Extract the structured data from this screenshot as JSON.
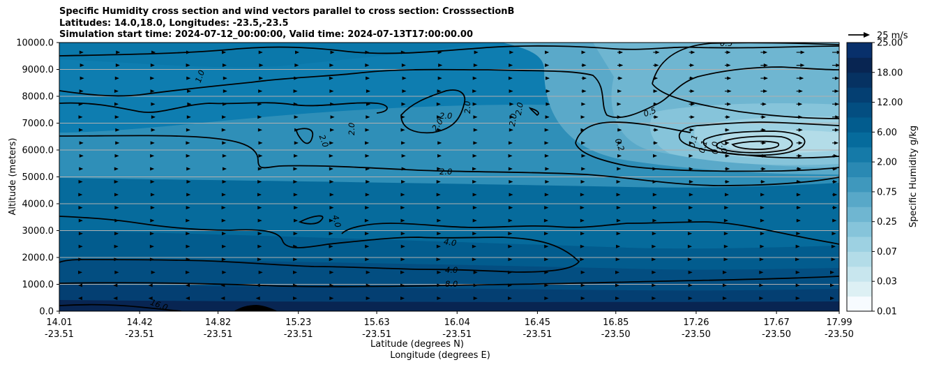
{
  "chart_data": {
    "type": "contour",
    "title_lines": [
      "Specific Humidity cross section and wind vectors parallel to cross section: CrosssectionB",
      "Latitudes: 14.0,18.0, Longitudes: -23.5,-23.5",
      "Simulation start time: 2024-07-12_00:00:00, Valid time: 2024-07-13T17:00:00.00"
    ],
    "ylabel": "Altitude (meters)",
    "xlabel_lat": "Latitude (degrees N)",
    "xlabel_lon": "Longitude (degrees E)",
    "ylim": [
      0,
      10000
    ],
    "y_ticks": [
      "0.0",
      "1000.0",
      "2000.0",
      "3000.0",
      "4000.0",
      "5000.0",
      "6000.0",
      "7000.0",
      "8000.0",
      "9000.0",
      "10000.0"
    ],
    "x_ticks": [
      {
        "lat": "14.01",
        "lon": "-23.51"
      },
      {
        "lat": "14.42",
        "lon": "-23.51"
      },
      {
        "lat": "14.82",
        "lon": "-23.51"
      },
      {
        "lat": "15.23",
        "lon": "-23.51"
      },
      {
        "lat": "15.63",
        "lon": "-23.51"
      },
      {
        "lat": "16.04",
        "lon": "-23.51"
      },
      {
        "lat": "16.45",
        "lon": "-23.51"
      },
      {
        "lat": "16.85",
        "lon": "-23.50"
      },
      {
        "lat": "17.26",
        "lon": "-23.50"
      },
      {
        "lat": "17.67",
        "lon": "-23.50"
      },
      {
        "lat": "17.99",
        "lon": "-23.50"
      }
    ],
    "colorbar": {
      "label": "Specific Humidity g/kg",
      "ticks": [
        "0.01",
        "0.03",
        "0.07",
        "0.25",
        "0.75",
        "2.00",
        "6.00",
        "12.00",
        "18.00",
        "25.00"
      ],
      "colors": [
        "#f7fbff",
        "#ddf0f4",
        "#c8e6ee",
        "#b3dce8",
        "#9dd1e2",
        "#86c4da",
        "#6fb6d1",
        "#58a8c8",
        "#3f98bd",
        "#2a89b3",
        "#157aa8",
        "#066b9c",
        "#025c8e",
        "#034e81",
        "#043f72",
        "#063262",
        "#082552",
        "#08306b"
      ]
    },
    "quiver_key": {
      "label": "25 m/s",
      "speed_ms": 25
    },
    "contour_labels": [
      "0.5",
      "1.0",
      "2.0",
      "2.0",
      "2.0",
      "2.0",
      "2.0",
      "2.0",
      "2.0",
      "2.0",
      "0.5",
      "0.2",
      "0.1",
      "0.1",
      "0.0",
      "0.0",
      "4.0",
      "4.0",
      "4.0",
      "8.0",
      "16.0"
    ]
  }
}
